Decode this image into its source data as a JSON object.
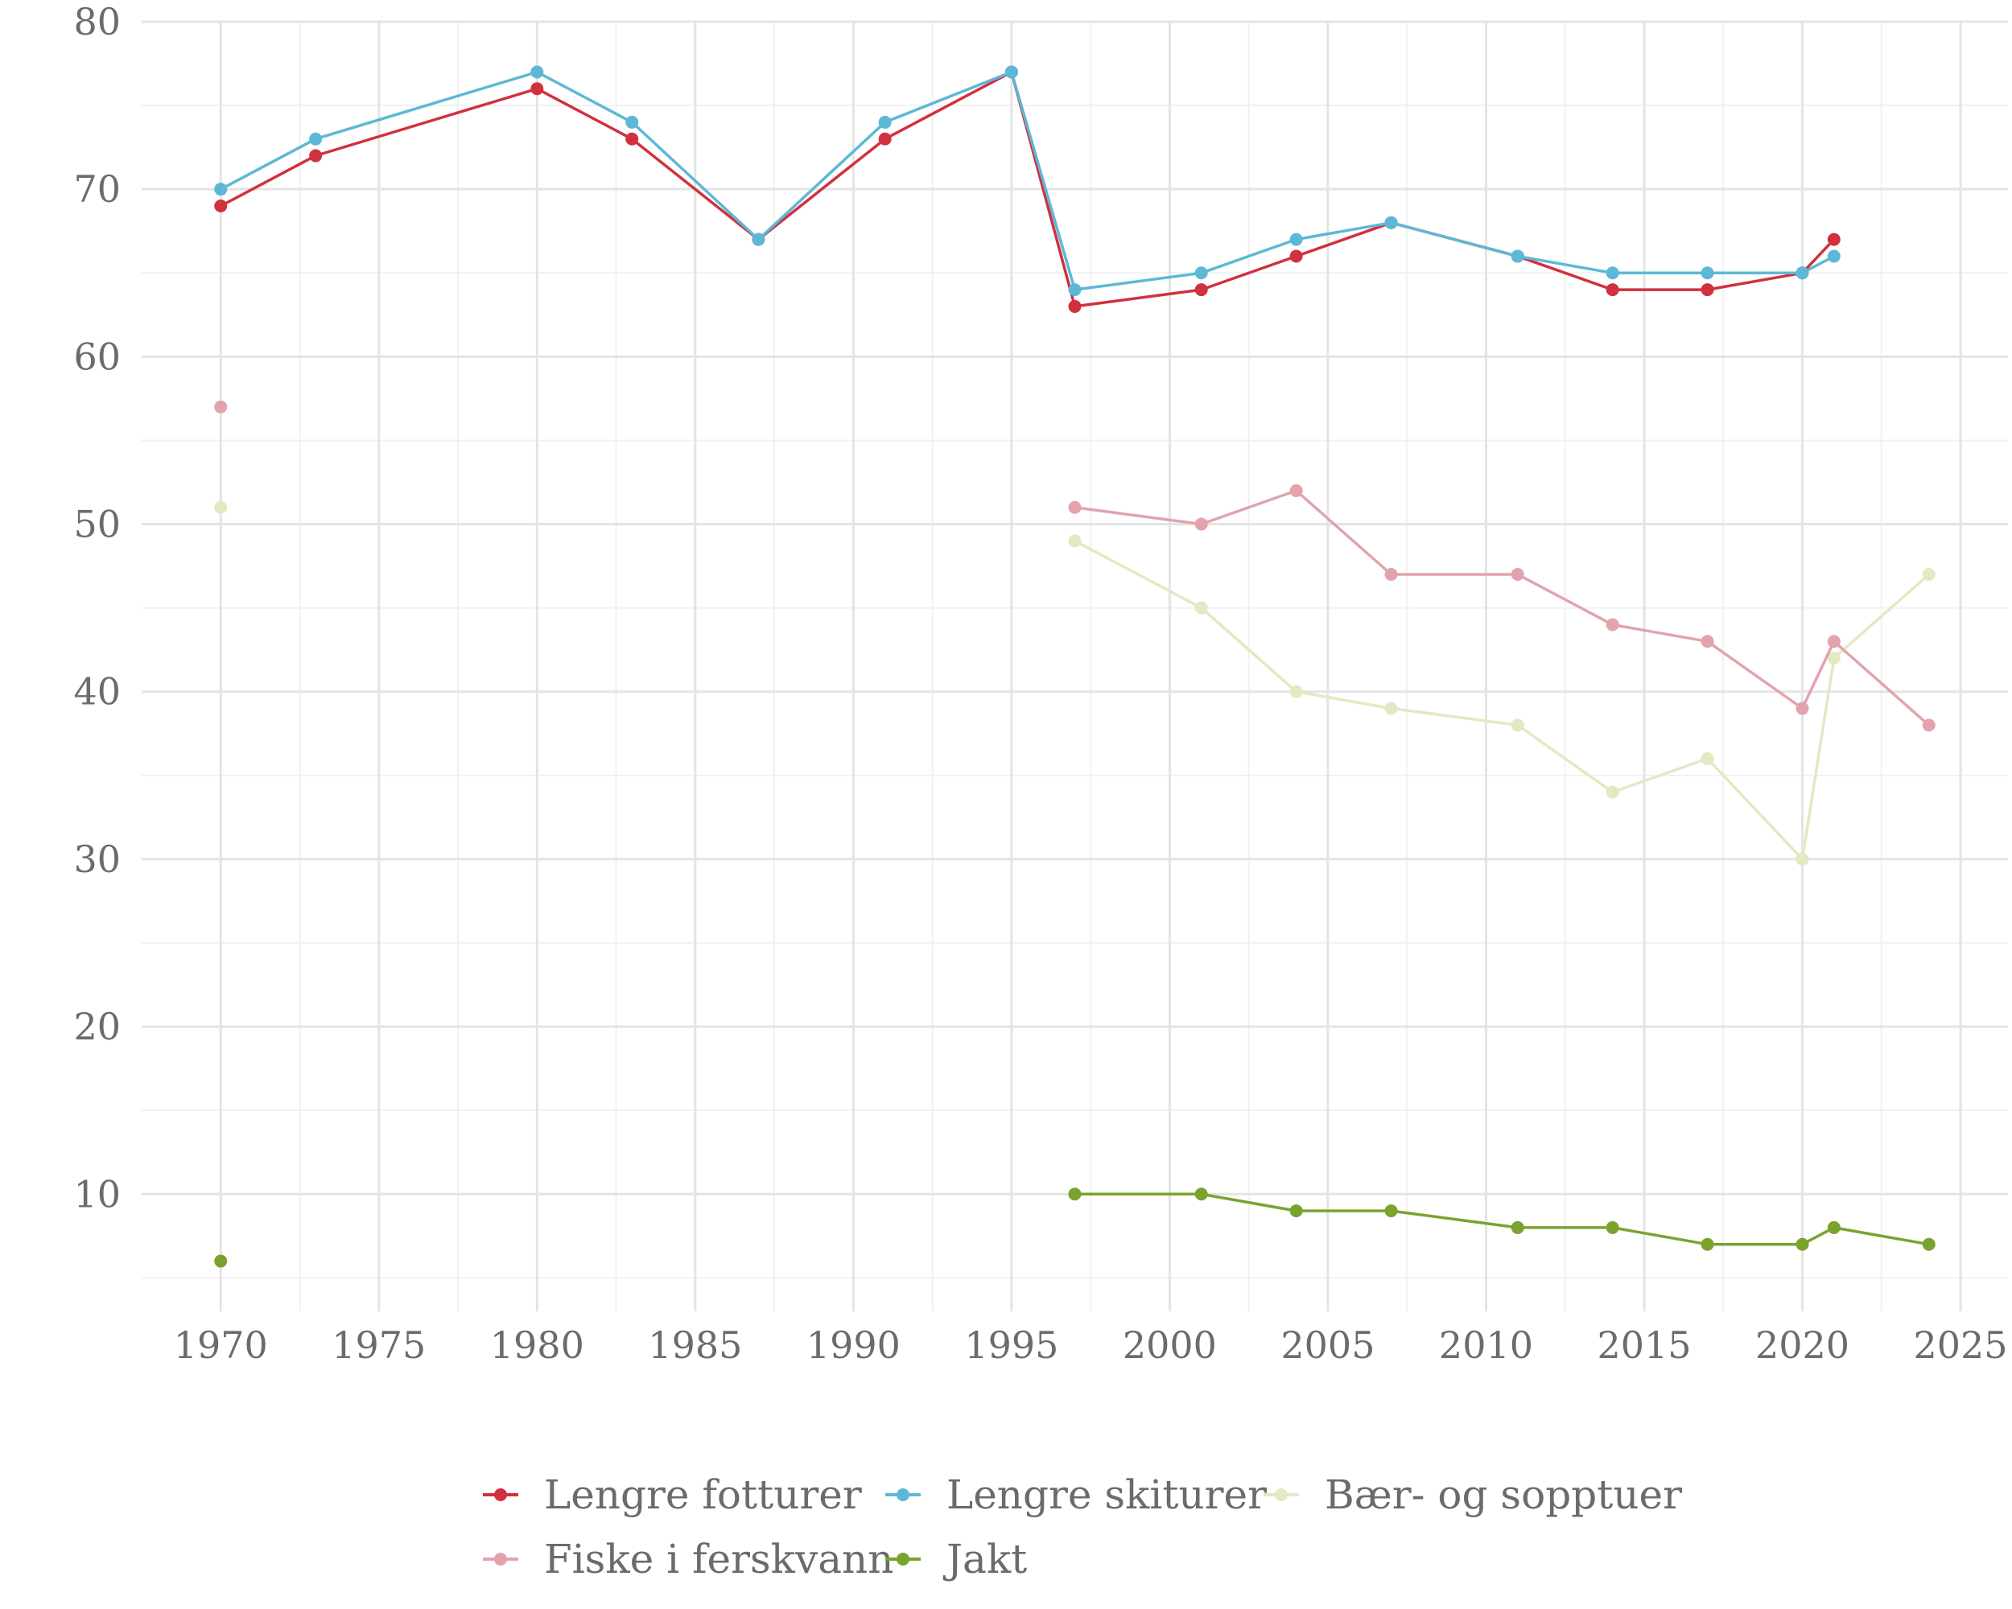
{
  "chart_data": {
    "type": "line",
    "title": "",
    "xlabel": "",
    "ylabel": "",
    "xlim": [
      1967.5,
      2026.5
    ],
    "ylim": [
      3,
      80
    ],
    "x_ticks": [
      1970,
      1975,
      1980,
      1985,
      1990,
      1995,
      2000,
      2005,
      2010,
      2015,
      2020,
      2025
    ],
    "y_ticks": [
      10,
      20,
      30,
      40,
      50,
      60,
      70,
      80
    ],
    "grid": true,
    "legend_position": "bottom",
    "series": [
      {
        "name": "Lengre fotturer",
        "color": "#d1303f",
        "segments": [
          [
            [
              1970,
              69
            ],
            [
              1973,
              72
            ],
            [
              1980,
              76
            ],
            [
              1983,
              73
            ],
            [
              1987,
              67
            ],
            [
              1991,
              73
            ],
            [
              1995,
              77
            ],
            [
              1997,
              63
            ],
            [
              2001,
              64
            ],
            [
              2004,
              66
            ],
            [
              2007,
              68
            ],
            [
              2011,
              66
            ],
            [
              2014,
              64
            ],
            [
              2017,
              64
            ],
            [
              2020,
              65
            ],
            [
              2021,
              67
            ]
          ]
        ]
      },
      {
        "name": "Lengre skiturer",
        "color": "#5db8d6",
        "segments": [
          [
            [
              1970,
              70
            ],
            [
              1973,
              73
            ],
            [
              1980,
              77
            ],
            [
              1983,
              74
            ],
            [
              1987,
              67
            ],
            [
              1991,
              74
            ],
            [
              1995,
              77
            ],
            [
              1997,
              64
            ],
            [
              2001,
              65
            ],
            [
              2004,
              67
            ],
            [
              2007,
              68
            ],
            [
              2011,
              66
            ],
            [
              2014,
              65
            ],
            [
              2017,
              65
            ],
            [
              2020,
              65
            ],
            [
              2021,
              66
            ]
          ]
        ]
      },
      {
        "name": "Bær- og sopptuer",
        "color": "#e5e8c2",
        "segments": [
          [
            [
              1970,
              51
            ]
          ],
          [
            [
              1997,
              49
            ],
            [
              2001,
              45
            ],
            [
              2004,
              40
            ],
            [
              2007,
              39
            ],
            [
              2011,
              38
            ],
            [
              2014,
              34
            ],
            [
              2017,
              36
            ],
            [
              2020,
              30
            ],
            [
              2021,
              42
            ],
            [
              2024,
              47
            ]
          ]
        ]
      },
      {
        "name": "Fiske i ferskvann",
        "color": "#e2a3ad",
        "segments": [
          [
            [
              1970,
              57
            ]
          ],
          [
            [
              1997,
              51
            ],
            [
              2001,
              50
            ],
            [
              2004,
              52
            ],
            [
              2007,
              47
            ],
            [
              2011,
              47
            ],
            [
              2014,
              44
            ],
            [
              2017,
              43
            ],
            [
              2020,
              39
            ],
            [
              2021,
              43
            ],
            [
              2024,
              38
            ]
          ]
        ]
      },
      {
        "name": "Jakt",
        "color": "#7aa32e",
        "segments": [
          [
            [
              1970,
              6
            ]
          ],
          [
            [
              1997,
              10
            ],
            [
              2001,
              10
            ],
            [
              2004,
              9
            ],
            [
              2007,
              9
            ],
            [
              2011,
              8
            ],
            [
              2014,
              8
            ],
            [
              2017,
              7
            ],
            [
              2020,
              7
            ],
            [
              2021,
              8
            ],
            [
              2024,
              7
            ]
          ]
        ]
      }
    ]
  }
}
